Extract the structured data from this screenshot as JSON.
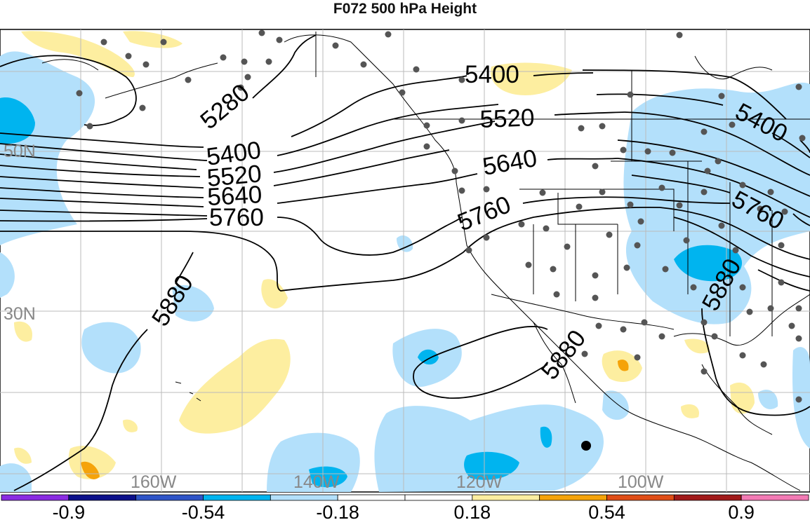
{
  "title": "F072 500 hPa Height",
  "contour_labels": {
    "c5280": "5280",
    "c5400_w": "5400",
    "c5520_w": "5520",
    "c5640_w": "5640",
    "c5760_w": "5760",
    "c5880_w": "5880",
    "c5400_n": "5400",
    "c5520_n": "5520",
    "c5640_n": "5640",
    "c5760_n": "5760",
    "c5880_mx": "5880",
    "c5400_e": "5400",
    "c5760_e": "5760",
    "c5880_e": "5880"
  },
  "lat_labels": {
    "n50": "50N",
    "n30": "30N"
  },
  "lon_labels": {
    "w160": "160W",
    "w140": "140W",
    "w120": "120W",
    "w100": "100W"
  },
  "colorbar": {
    "labels": [
      "-0.9",
      "-0.54",
      "-0.18",
      "0.18",
      "0.54",
      "0.9"
    ],
    "colors": [
      "#8a2be2",
      "#0b0f8a",
      "#2f55c8",
      "#00b4ef",
      "#b3e0fb",
      "#ffffff",
      "#ffffff",
      "#fdeea0",
      "#f5a30a",
      "#e04d16",
      "#a01818",
      "#f27ab4"
    ]
  },
  "colors": {
    "light_blue": "#b3e0fb",
    "mid_blue": "#00b4ef",
    "light_yellow": "#fdeea0",
    "orange": "#f5a30a"
  }
}
